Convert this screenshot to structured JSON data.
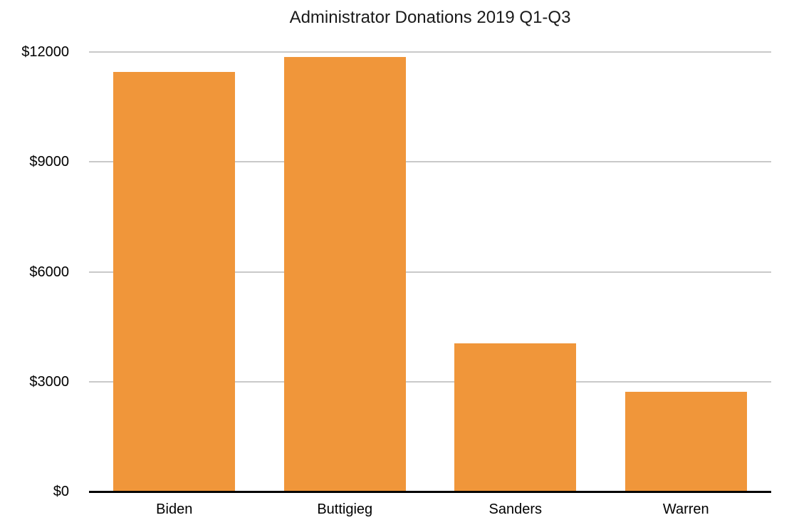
{
  "chart_data": {
    "type": "bar",
    "title": "Administrator Donations 2019 Q1-Q3",
    "categories": [
      "Biden",
      "Buttigieg",
      "Sanders",
      "Warren"
    ],
    "values": [
      11450,
      11860,
      4050,
      2720
    ],
    "xlabel": "",
    "ylabel": "",
    "ylim": [
      0,
      12000
    ],
    "y_ticks": [
      {
        "value": 0,
        "label": "$0"
      },
      {
        "value": 3000,
        "label": "$3000"
      },
      {
        "value": 6000,
        "label": "$6000"
      },
      {
        "value": 9000,
        "label": "$9000"
      },
      {
        "value": 12000,
        "label": "$12000"
      }
    ],
    "grid": true,
    "legend_position": "none",
    "colors": {
      "bar": "#F0963A",
      "gridline": "#C9C9C9",
      "axis": "#000000",
      "text": "#000000",
      "background": "#FFFFFF"
    }
  }
}
